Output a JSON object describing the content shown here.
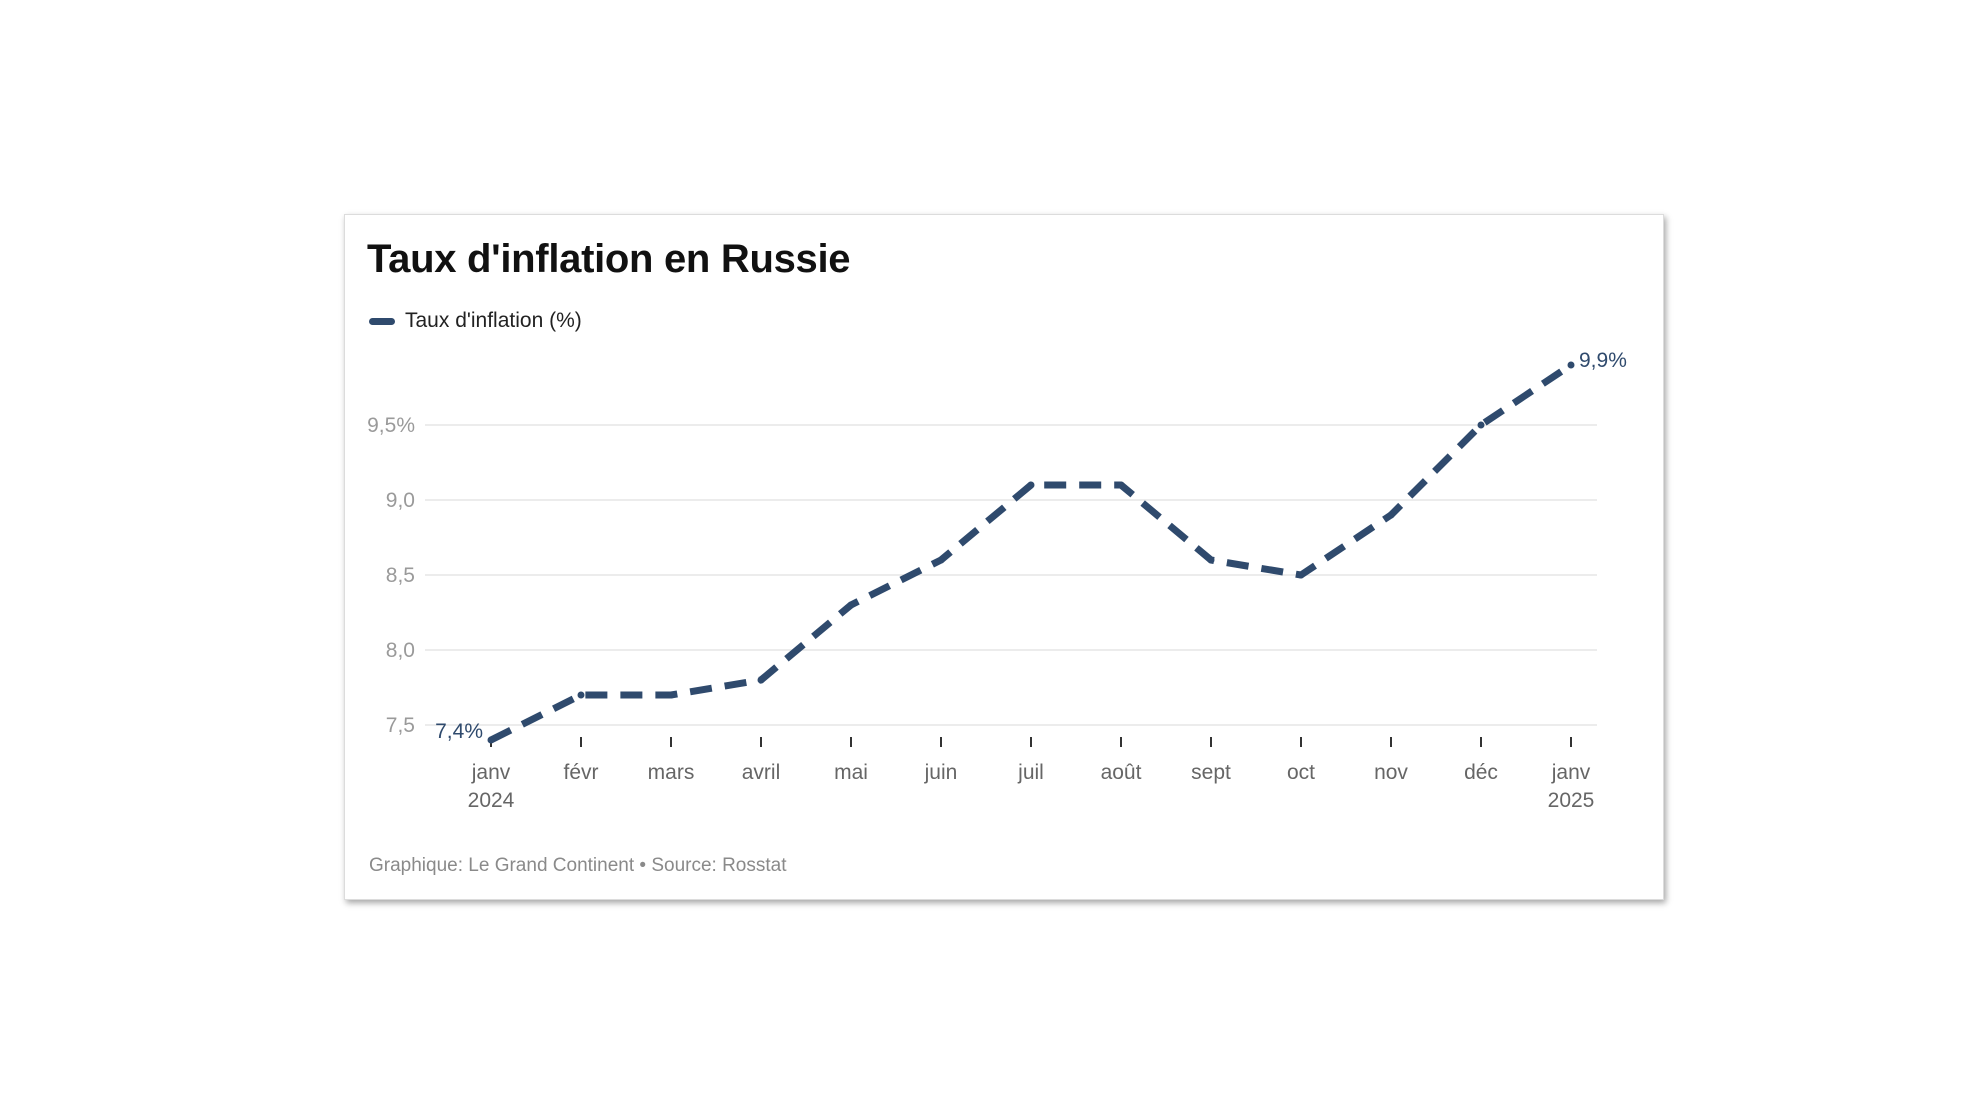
{
  "chart_data": {
    "type": "line",
    "title": "Taux d'inflation en Russie",
    "series": [
      {
        "name": "Taux d'inflation (%)",
        "color": "#2f4a6d",
        "style": "dashed",
        "values": [
          7.4,
          7.7,
          7.7,
          7.8,
          8.3,
          8.6,
          9.1,
          9.1,
          8.6,
          8.5,
          8.9,
          9.5,
          9.9
        ]
      }
    ],
    "categories": [
      [
        "janv",
        "2024"
      ],
      [
        "févr"
      ],
      [
        "mars"
      ],
      [
        "avril"
      ],
      [
        "mai"
      ],
      [
        "juin"
      ],
      [
        "juil"
      ],
      [
        "août"
      ],
      [
        "sept"
      ],
      [
        "oct"
      ],
      [
        "nov"
      ],
      [
        "déc"
      ],
      [
        "janv",
        "2025"
      ]
    ],
    "y_ticks": [
      {
        "value": 7.5,
        "label": "7,5"
      },
      {
        "value": 8.0,
        "label": "8,0"
      },
      {
        "value": 8.5,
        "label": "8,5"
      },
      {
        "value": 9.0,
        "label": "9,0"
      },
      {
        "value": 9.5,
        "label": "9,5%"
      }
    ],
    "ylim": [
      7.4,
      9.9
    ],
    "grid": true,
    "legend_position": "top-left",
    "annotations": [
      {
        "index": 0,
        "label": "7,4%",
        "side": "left"
      },
      {
        "index": 12,
        "label": "9,9%",
        "side": "right"
      }
    ]
  },
  "footer": "Graphique: Le Grand Continent • Source: Rosstat"
}
